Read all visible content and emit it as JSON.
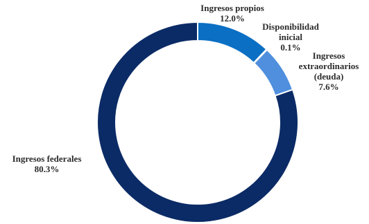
{
  "chart_data": {
    "type": "pie",
    "title": "",
    "slices": [
      {
        "label": "Ingresos propios",
        "label_lines": [
          "Ingresos propios"
        ],
        "value": 12.0,
        "value_label": "12.0%",
        "color": "#0b6fc4"
      },
      {
        "label": "Disponibilidad inicial",
        "label_lines": [
          "Disponibilidad",
          "inicial"
        ],
        "value": 0.1,
        "value_label": "0.1%",
        "color": "#1e7fd0"
      },
      {
        "label": "Ingresos extraordinarios (deuda)",
        "label_lines": [
          "Ingresos",
          "extraordinarios",
          "(deuda)"
        ],
        "value": 7.6,
        "value_label": "7.6%",
        "color": "#4f8fde"
      },
      {
        "label": "Ingresos federales",
        "label_lines": [
          "Ingresos federales"
        ],
        "value": 80.3,
        "value_label": "80.3%",
        "color": "#0b2b66"
      }
    ]
  }
}
